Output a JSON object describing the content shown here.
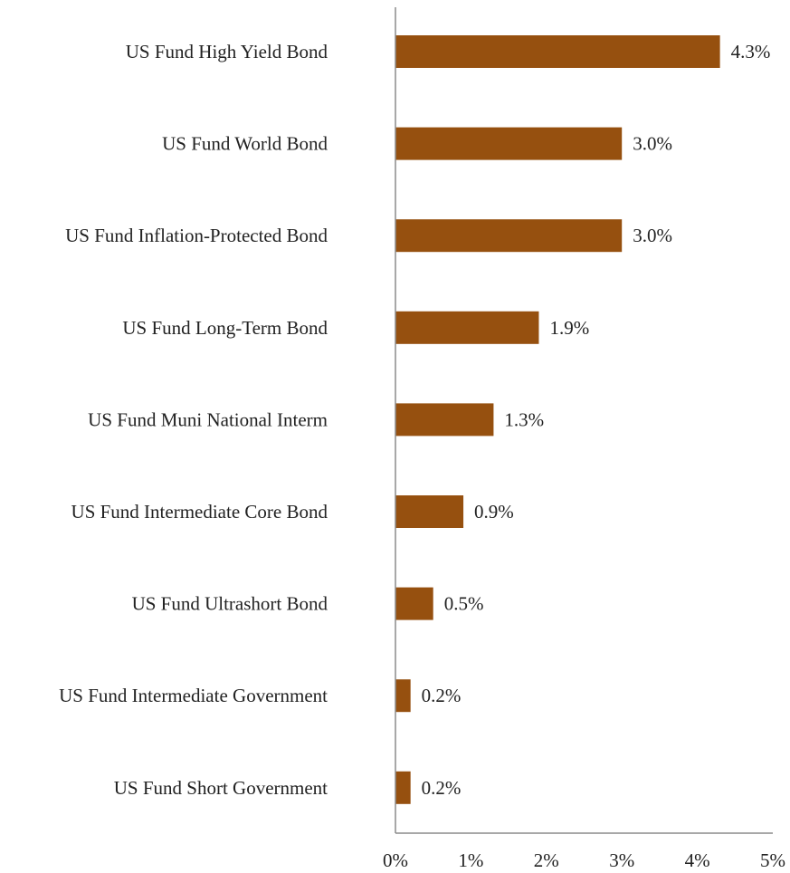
{
  "chart_data": {
    "type": "bar",
    "orientation": "horizontal",
    "categories": [
      "US Fund High Yield Bond",
      "US Fund World Bond",
      "US Fund Inflation-Protected Bond",
      "US Fund Long-Term Bond",
      "US Fund Muni National Interm",
      "US Fund Intermediate Core Bond",
      "US Fund Ultrashort Bond",
      "US Fund Intermediate Government",
      "US Fund Short Government"
    ],
    "values": [
      4.3,
      3.0,
      3.0,
      1.9,
      1.3,
      0.9,
      0.5,
      0.2,
      0.2
    ],
    "value_labels": [
      "4.3%",
      "3.0%",
      "3.0%",
      "1.9%",
      "1.3%",
      "0.9%",
      "0.5%",
      "0.2%",
      "0.2%"
    ],
    "xlim": [
      0,
      5
    ],
    "xticks": [
      0,
      1,
      2,
      3,
      4,
      5
    ],
    "xtick_labels": [
      "0%",
      "1%",
      "2%",
      "3%",
      "4%",
      "5%"
    ],
    "title": "",
    "xlabel": "",
    "ylabel": "",
    "grid": false,
    "legend": "none",
    "bar_color": "#96500F",
    "text_color": "#222222",
    "axis_color": "#8c8c8c"
  }
}
